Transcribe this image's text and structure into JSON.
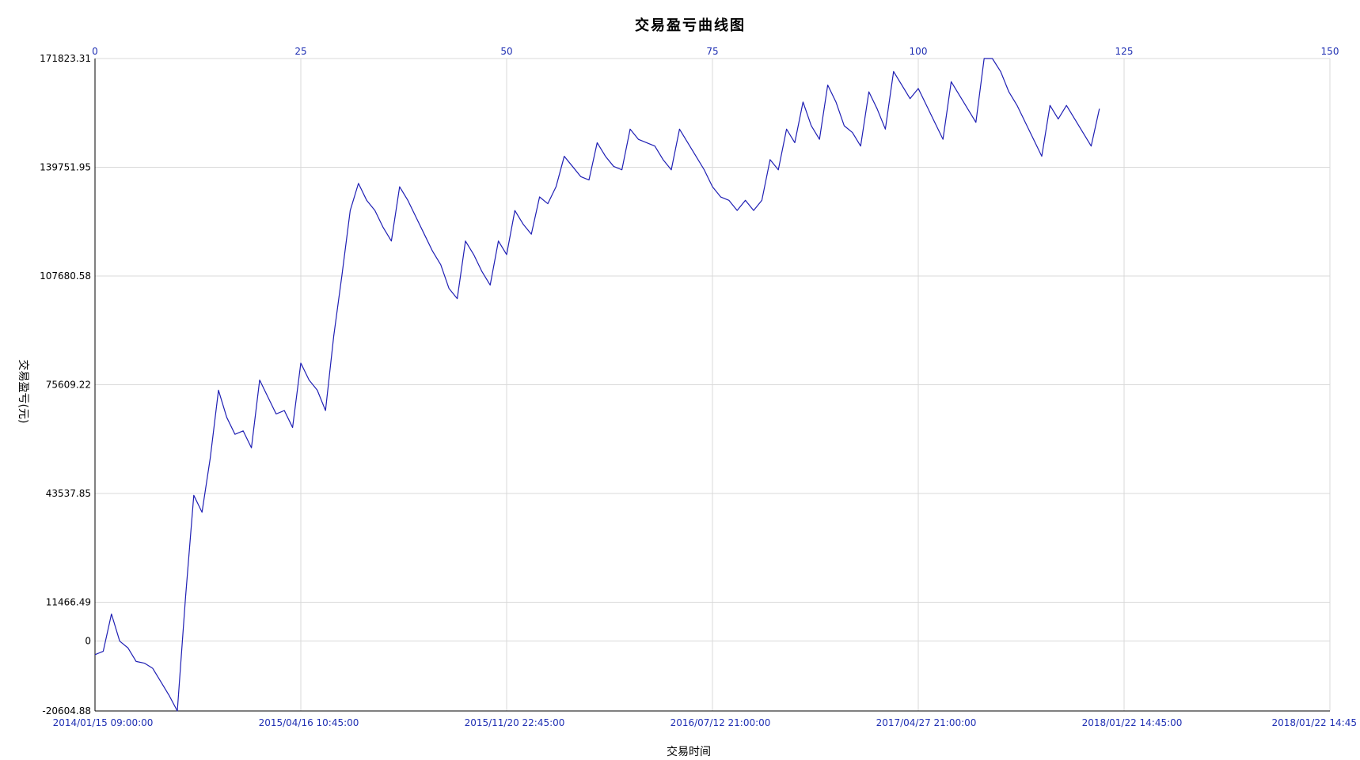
{
  "chart_data": {
    "type": "line",
    "title": "交易盈亏曲线图",
    "xlabel": "交易时间",
    "ylabel": "交易盈亏(元)",
    "ylim": [
      -20604.88,
      171823.31
    ],
    "grid": true,
    "colors": {
      "line": "#1f1fb4",
      "axis_text": "#1f2fb3",
      "grid": "#d9d9d9",
      "axis": "#000000"
    },
    "y_ticks": [
      {
        "value": 171823.31,
        "label": "171823.31"
      },
      {
        "value": 139751.95,
        "label": "139751.95"
      },
      {
        "value": 107680.58,
        "label": "107680.58"
      },
      {
        "value": 75609.22,
        "label": "75609.22"
      },
      {
        "value": 43537.85,
        "label": "43537.85"
      },
      {
        "value": 11466.49,
        "label": "11466.49"
      },
      {
        "value": 0,
        "label": "0"
      },
      {
        "value": -20604.88,
        "label": "-20604.88"
      }
    ],
    "x_top_range": [
      0,
      150
    ],
    "x_top_ticks": [
      {
        "value": 0,
        "label": "0"
      },
      {
        "value": 25,
        "label": "25"
      },
      {
        "value": 50,
        "label": "50"
      },
      {
        "value": 75,
        "label": "75"
      },
      {
        "value": 100,
        "label": "100"
      },
      {
        "value": 125,
        "label": "125"
      },
      {
        "value": 150,
        "label": "150"
      }
    ],
    "x_bottom_ticks": [
      {
        "value": 0,
        "label": "2014/01/15 09:00:00"
      },
      {
        "value": 25,
        "label": "2015/04/16 10:45:00"
      },
      {
        "value": 50,
        "label": "2015/11/20 22:45:00"
      },
      {
        "value": 75,
        "label": "2016/07/12 21:00:00"
      },
      {
        "value": 100,
        "label": "2017/04/27 21:00:00"
      },
      {
        "value": 125,
        "label": "2018/01/22 14:45:00"
      },
      {
        "value": 150,
        "label": "2018/01/22 14:45"
      }
    ],
    "series": [
      {
        "values": [
          -4000,
          -3000,
          8000,
          0,
          -2000,
          -6000,
          -6500,
          -8000,
          -12000,
          -16000,
          -20604.88,
          13000,
          43000,
          38000,
          54000,
          74000,
          66000,
          61000,
          62000,
          57000,
          77000,
          72000,
          67000,
          68000,
          63000,
          82000,
          77000,
          74000,
          68000,
          90000,
          108000,
          127000,
          135000,
          130000,
          127000,
          122000,
          118000,
          134000,
          130000,
          125000,
          120000,
          115000,
          111000,
          104000,
          101000,
          118000,
          114000,
          109000,
          105000,
          118000,
          114000,
          127000,
          123000,
          120000,
          131000,
          129000,
          134000,
          143000,
          140000,
          137000,
          136000,
          147000,
          143000,
          140000,
          139000,
          151000,
          148000,
          147000,
          146000,
          142000,
          139000,
          151000,
          147000,
          143000,
          139000,
          134000,
          131000,
          130000,
          127000,
          130000,
          127000,
          130000,
          142000,
          139000,
          151000,
          147000,
          159000,
          152000,
          148000,
          164000,
          159000,
          152000,
          150000,
          146000,
          162000,
          157000,
          151000,
          168000,
          164000,
          160000,
          163000,
          158000,
          153000,
          148000,
          165000,
          161000,
          157000,
          153000,
          171823.31,
          171823.31,
          168000,
          162000,
          158000,
          153000,
          148000,
          143000,
          158000,
          154000,
          158000,
          154000,
          150000,
          146000,
          157000
        ]
      }
    ]
  }
}
